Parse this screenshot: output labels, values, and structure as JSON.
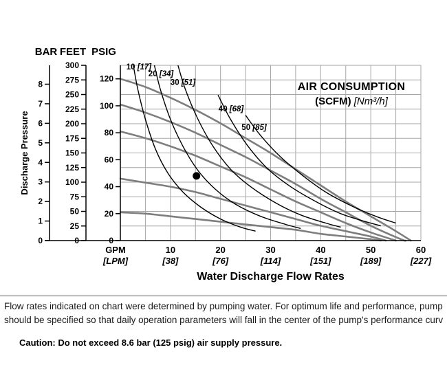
{
  "page": {
    "footnote_line1": "Flow rates indicated on chart were determined by pumping water. For optimum life and performance, pump",
    "footnote_line2": "should be specified so that daily operation parameters will fall in the center of the pump's performance curv",
    "caution": "Caution: Do not exceed 8.6 bar (125 psig) air supply pressure."
  },
  "chart_data": {
    "type": "line",
    "title": "AIR CONSUMPTION",
    "title_sub_bold": "(SCFM)",
    "title_sub_italic": "[Nm³/h]",
    "xlabel": "Water Discharge Flow Rates",
    "ylabel": "Discharge Pressure",
    "x_primary_unit": "GPM",
    "x_secondary_unit": "[LPM]",
    "x_range_gpm": [
      0,
      60
    ],
    "y_range_feet": [
      0,
      300
    ],
    "grid": {
      "x_step_gpm": 5,
      "y_step_feet": 25,
      "grid_on": true
    },
    "y_axes": [
      {
        "unit": "BAR",
        "ticks": [
          0,
          1,
          2,
          3,
          4,
          5,
          6,
          7,
          8
        ],
        "ft_per_unit": 33.455
      },
      {
        "unit": "FEET",
        "ticks": [
          0,
          25,
          50,
          75,
          100,
          125,
          150,
          175,
          200,
          225,
          250,
          275,
          300
        ],
        "ft_per_unit": 1
      },
      {
        "unit": "PSIG",
        "ticks": [
          0,
          20,
          40,
          60,
          80,
          100,
          120
        ],
        "ft_per_unit": 2.3067
      }
    ],
    "x_ticks": [
      {
        "gpm": 10,
        "lpm": "[38]"
      },
      {
        "gpm": 20,
        "lpm": "[76]"
      },
      {
        "gpm": 30,
        "lpm": "[114]"
      },
      {
        "gpm": 40,
        "lpm": "[151]"
      },
      {
        "gpm": 50,
        "lpm": "[189]"
      },
      {
        "gpm": 60,
        "lpm": "[227]"
      }
    ],
    "water_curves": [
      {
        "start_psig": 120,
        "points": [
          [
            0,
            120
          ],
          [
            5,
            114
          ],
          [
            10,
            106
          ],
          [
            15,
            97
          ],
          [
            20,
            87
          ],
          [
            25,
            76
          ],
          [
            30,
            65
          ],
          [
            35,
            53
          ],
          [
            40,
            41
          ],
          [
            45,
            29
          ],
          [
            50,
            18
          ],
          [
            55,
            7
          ],
          [
            58,
            0
          ]
        ]
      },
      {
        "start_psig": 100,
        "points": [
          [
            0,
            101
          ],
          [
            5,
            95
          ],
          [
            10,
            88
          ],
          [
            15,
            80
          ],
          [
            20,
            71
          ],
          [
            25,
            62
          ],
          [
            30,
            52
          ],
          [
            35,
            42
          ],
          [
            40,
            31
          ],
          [
            45,
            21
          ],
          [
            50,
            11
          ],
          [
            56,
            1
          ],
          [
            57,
            0
          ]
        ]
      },
      {
        "start_psig": 80,
        "points": [
          [
            0,
            81
          ],
          [
            5,
            76
          ],
          [
            10,
            70
          ],
          [
            15,
            63
          ],
          [
            20,
            55
          ],
          [
            25,
            47
          ],
          [
            30,
            38
          ],
          [
            35,
            29
          ],
          [
            40,
            21
          ],
          [
            45,
            13
          ],
          [
            50,
            6
          ],
          [
            55,
            0
          ]
        ]
      },
      {
        "start_psig": 45,
        "points": [
          [
            0,
            46
          ],
          [
            5,
            43
          ],
          [
            10,
            40
          ],
          [
            15,
            36
          ],
          [
            20,
            31
          ],
          [
            25,
            26
          ],
          [
            30,
            21
          ],
          [
            35,
            16
          ],
          [
            40,
            11
          ],
          [
            45,
            7
          ],
          [
            50,
            3
          ],
          [
            53,
            0
          ]
        ]
      },
      {
        "start_psig": 20,
        "points": [
          [
            0,
            21
          ],
          [
            5,
            20
          ],
          [
            10,
            18
          ],
          [
            15,
            16
          ],
          [
            20,
            14
          ],
          [
            25,
            12
          ],
          [
            30,
            10
          ],
          [
            35,
            8
          ],
          [
            40,
            5
          ],
          [
            45,
            3
          ],
          [
            50,
            1
          ],
          [
            52,
            0
          ]
        ]
      }
    ],
    "air_curves": [
      {
        "scfm": "10",
        "nm3h": "[17]",
        "label_at": [
          1.2,
          127
        ],
        "points": [
          [
            2.6,
            130
          ],
          [
            3.5,
            112
          ],
          [
            5,
            90
          ],
          [
            7,
            68
          ],
          [
            9.5,
            50
          ],
          [
            12.5,
            36
          ],
          [
            16,
            25
          ],
          [
            20,
            16
          ],
          [
            24,
            10
          ],
          [
            27,
            7
          ]
        ]
      },
      {
        "scfm": "20",
        "nm3h": "[34]",
        "label_at": [
          5.6,
          122
        ],
        "points": [
          [
            6.8,
            130
          ],
          [
            8,
            112
          ],
          [
            10,
            90
          ],
          [
            12.5,
            70
          ],
          [
            15.5,
            52
          ],
          [
            19,
            38
          ],
          [
            23,
            27
          ],
          [
            28,
            18
          ],
          [
            33,
            12
          ],
          [
            36,
            9
          ]
        ]
      },
      {
        "scfm": "30",
        "nm3h": "[51]",
        "label_at": [
          10,
          115.5
        ],
        "points": [
          [
            11.5,
            130
          ],
          [
            13,
            112
          ],
          [
            15.5,
            90
          ],
          [
            18.5,
            70
          ],
          [
            22,
            53
          ],
          [
            26,
            40
          ],
          [
            31,
            28
          ],
          [
            36,
            19
          ],
          [
            41,
            13
          ],
          [
            44,
            10
          ]
        ]
      },
      {
        "scfm": "40",
        "nm3h": "[68]",
        "label_at": [
          19.6,
          96
        ],
        "points": [
          [
            19.5,
            108
          ],
          [
            22,
            90
          ],
          [
            25.5,
            70
          ],
          [
            29.5,
            53
          ],
          [
            34,
            40
          ],
          [
            39,
            29
          ],
          [
            44,
            20
          ],
          [
            49,
            14
          ],
          [
            52,
            11
          ]
        ]
      },
      {
        "scfm": "50",
        "nm3h": "[85]",
        "label_at": [
          24.2,
          82
        ],
        "points": [
          [
            25,
            93
          ],
          [
            28,
            78
          ],
          [
            32,
            62
          ],
          [
            36.5,
            48
          ],
          [
            41,
            36
          ],
          [
            46,
            26
          ],
          [
            51,
            18
          ],
          [
            55,
            13
          ]
        ]
      }
    ],
    "operating_point": {
      "gpm": 15.2,
      "psig": 48
    }
  }
}
